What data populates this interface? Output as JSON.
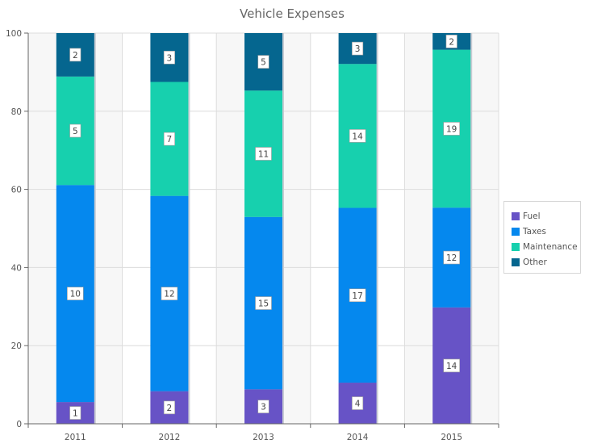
{
  "chart_data": {
    "type": "bar",
    "stacking": "percent",
    "title": "Vehicle Expenses",
    "xlabel": "",
    "ylabel": "",
    "ylim": [
      0,
      100
    ],
    "yticks": [
      0,
      20,
      40,
      60,
      80,
      100
    ],
    "grid": true,
    "legend_position": "right",
    "categories": [
      "2011",
      "2012",
      "2013",
      "2014",
      "2015"
    ],
    "series": [
      {
        "name": "Fuel",
        "color": "#6753c6",
        "values": [
          1,
          2,
          3,
          4,
          14
        ]
      },
      {
        "name": "Taxes",
        "color": "#0588ee",
        "values": [
          10,
          12,
          15,
          17,
          12
        ]
      },
      {
        "name": "Maintenance",
        "color": "#17d0ae",
        "values": [
          5,
          7,
          11,
          14,
          19
        ]
      },
      {
        "name": "Other",
        "color": "#05668f",
        "values": [
          2,
          3,
          5,
          3,
          2
        ]
      }
    ]
  }
}
